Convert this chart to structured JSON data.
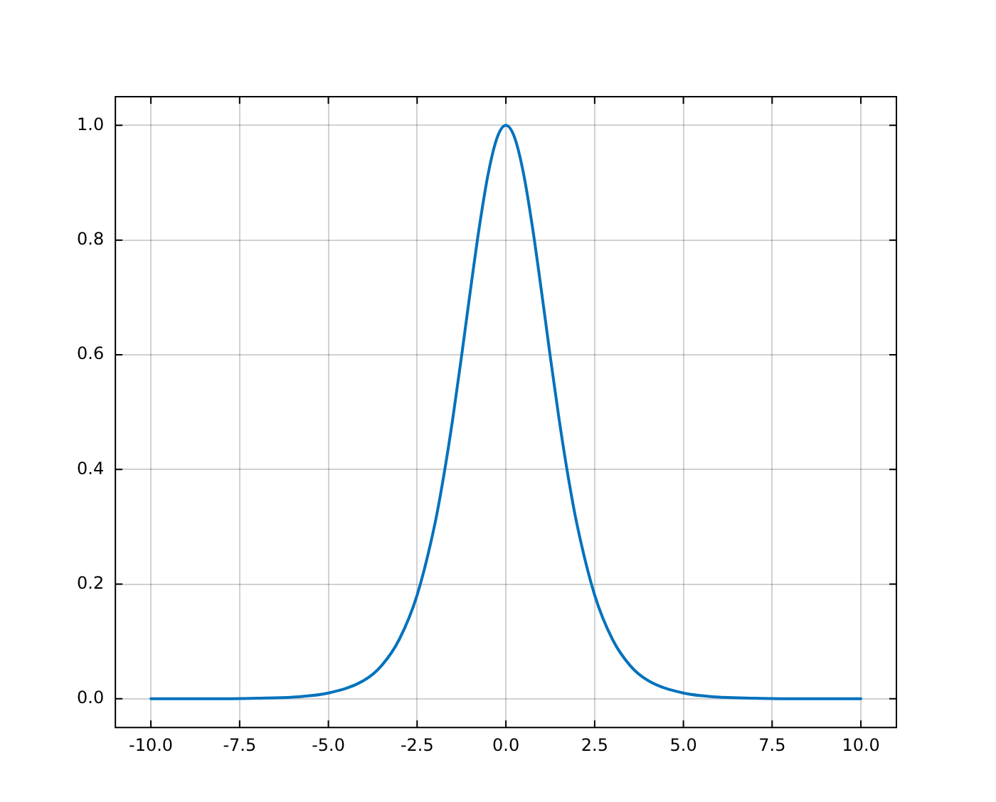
{
  "chart_data": {
    "type": "line",
    "x": [
      -10,
      -8,
      -7,
      -6,
      -5,
      -4,
      -3.5,
      -3,
      -2.5,
      -2,
      -1.75,
      -1.5,
      -1.25,
      -1,
      -0.75,
      -0.5,
      -0.25,
      0,
      0.25,
      0.5,
      0.75,
      1,
      1.25,
      1.5,
      1.75,
      2,
      2.5,
      3,
      3.5,
      4,
      5,
      6,
      7,
      8,
      10
    ],
    "series": [
      {
        "color": "#0072bd",
        "values": [
          0,
          0,
          0.001,
          0.003,
          0.01,
          0.032,
          0.058,
          0.104,
          0.181,
          0.305,
          0.389,
          0.487,
          0.597,
          0.712,
          0.822,
          0.915,
          0.978,
          1,
          0.978,
          0.915,
          0.822,
          0.712,
          0.597,
          0.487,
          0.389,
          0.305,
          0.181,
          0.104,
          0.058,
          0.032,
          0.01,
          0.003,
          0.001,
          0,
          0
        ]
      }
    ],
    "xlim": [
      -11,
      11
    ],
    "xticks": [
      {
        "value": -10,
        "label": "-10.0"
      },
      {
        "value": -7.5,
        "label": "-7.5"
      },
      {
        "value": -5,
        "label": "-5.0"
      },
      {
        "value": -2.5,
        "label": "-2.5"
      },
      {
        "value": 0,
        "label": "0.0"
      },
      {
        "value": 2.5,
        "label": "2.5"
      },
      {
        "value": 5,
        "label": "5.0"
      },
      {
        "value": 7.5,
        "label": "7.5"
      },
      {
        "value": 10,
        "label": "10.0"
      }
    ],
    "ylim": [
      -0.05,
      1.05
    ],
    "yticks": [
      {
        "value": 0,
        "label": "0.0"
      },
      {
        "value": 0.2,
        "label": "0.2"
      },
      {
        "value": 0.4,
        "label": "0.4"
      },
      {
        "value": 0.6,
        "label": "0.6"
      },
      {
        "value": 0.8,
        "label": "0.8"
      },
      {
        "value": 1,
        "label": "1.0"
      }
    ],
    "grid": true,
    "legend": false,
    "marker": "none",
    "line_style": "solid"
  }
}
